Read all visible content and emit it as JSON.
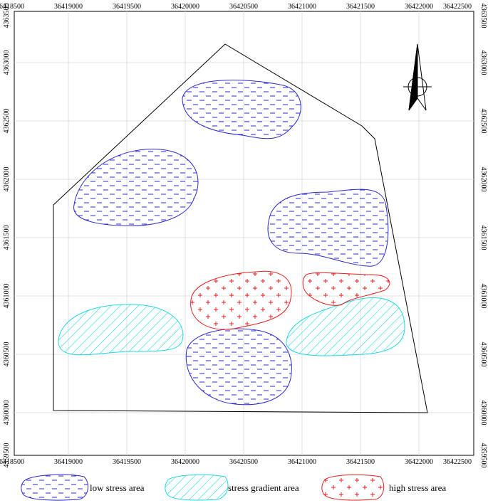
{
  "map": {
    "x_ticks_top": [
      "36418500",
      "36419000",
      "36419500",
      "36420000",
      "36420500",
      "36421000",
      "36421500",
      "36422000",
      "36422500"
    ],
    "x_ticks_bottom": [
      "36418500",
      "36419000",
      "36419500",
      "36420000",
      "36420500",
      "36421000",
      "36421500",
      "36422000",
      "36422500"
    ],
    "y_ticks_left": [
      "4363500",
      "4363000",
      "4362500",
      "4362000",
      "4361500",
      "4361000",
      "4360500",
      "4360000",
      "4359500"
    ],
    "y_ticks_right": [
      "4363500",
      "4363000",
      "4362500",
      "4362000",
      "4361500",
      "4361000",
      "4360500",
      "4360000",
      "4359500"
    ],
    "north_arrow": "north-arrow-icon",
    "colors": {
      "low_stress": "#2a2ad0",
      "stress_gradient": "#22d8e0",
      "high_stress": "#e82020",
      "boundary": "#000000",
      "grid": "#d8d8d8"
    }
  },
  "legend": {
    "low_stress_label": "low stress area",
    "gradient_label": "stress gradient area",
    "high_stress_label": "high stress area"
  }
}
